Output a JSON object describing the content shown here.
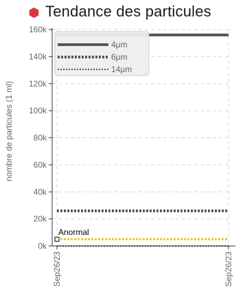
{
  "header": {
    "title": "Tendance des particules",
    "bullet_color": "#d9363e"
  },
  "chart_data": {
    "type": "line",
    "title": "Tendance des particules",
    "ylabel": "nombre de particules (1 ml)",
    "xlabel": "",
    "ylim": [
      0,
      160000
    ],
    "y_ticks": [
      0,
      20000,
      40000,
      60000,
      80000,
      100000,
      120000,
      140000,
      160000
    ],
    "y_tick_labels": [
      "0k",
      "20k",
      "40k",
      "60k",
      "80k",
      "100k",
      "120k",
      "140k",
      "160k"
    ],
    "x_tick_labels": [
      "Sep26/23",
      "Sep26/23"
    ],
    "grid": true,
    "legend_position": "top-left",
    "series": [
      {
        "name": "4μm",
        "values": [
          156000,
          156000
        ],
        "color": "#555555",
        "style": "solid"
      },
      {
        "name": "6μm",
        "values": [
          26000,
          26000
        ],
        "color": "#555555",
        "style": "dotted"
      },
      {
        "name": "14μm",
        "values": [
          0,
          0
        ],
        "color": "#555555",
        "style": "dashed"
      }
    ],
    "threshold": {
      "label": "Anormal",
      "value": 5000,
      "color": "#f0c419"
    }
  }
}
